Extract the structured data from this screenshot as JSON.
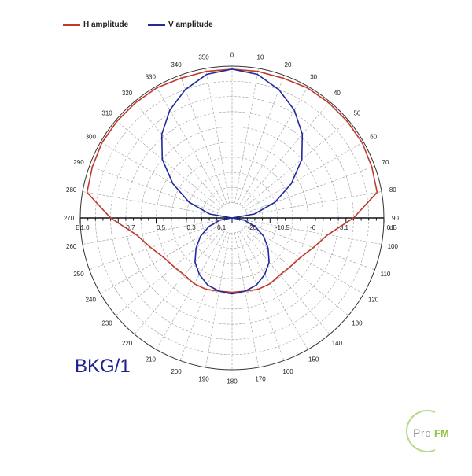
{
  "chart_data": {
    "type": "polar",
    "title": "BKG/1",
    "angle_ticks": [
      0,
      10,
      20,
      30,
      40,
      50,
      60,
      70,
      80,
      90,
      100,
      110,
      120,
      130,
      140,
      150,
      160,
      170,
      180,
      190,
      200,
      210,
      220,
      230,
      240,
      250,
      260,
      270,
      280,
      290,
      300,
      310,
      320,
      330,
      340,
      350
    ],
    "radial_labels_left": {
      "prefix": "Er",
      "ticks": [
        "1.0",
        "0.7",
        "0.5",
        "0.3",
        "0.1"
      ]
    },
    "radial_labels_right": {
      "suffix": "dB",
      "ticks": [
        "-20",
        "-10.5",
        "-6",
        "-3.1",
        "0"
      ]
    },
    "rlim": [
      0,
      1.0
    ],
    "grid": true,
    "legend_position": "top-left",
    "series": [
      {
        "name": "H amplitude",
        "color": "#c0392b",
        "theta": [
          0,
          10,
          20,
          30,
          40,
          50,
          60,
          70,
          80,
          90,
          100,
          110,
          120,
          130,
          140,
          150,
          160,
          170,
          180,
          190,
          200,
          210,
          220,
          230,
          240,
          250,
          260,
          270,
          280,
          290,
          300,
          310,
          320,
          330,
          340,
          350
        ],
        "r": [
          0.98,
          0.98,
          0.98,
          0.99,
          0.99,
          0.99,
          0.99,
          0.98,
          0.97,
          0.8,
          0.64,
          0.57,
          0.52,
          0.5,
          0.49,
          0.5,
          0.5,
          0.49,
          0.49,
          0.49,
          0.5,
          0.5,
          0.49,
          0.5,
          0.52,
          0.57,
          0.64,
          0.8,
          0.97,
          0.98,
          0.99,
          0.99,
          0.99,
          0.99,
          0.98,
          0.98
        ]
      },
      {
        "name": "V amplitude",
        "color": "#1f2a9c",
        "theta": [
          0,
          10,
          20,
          30,
          40,
          50,
          60,
          70,
          80,
          90,
          100,
          110,
          120,
          130,
          140,
          150,
          160,
          170,
          180,
          190,
          200,
          210,
          220,
          230,
          240,
          250,
          260,
          270,
          280,
          290,
          300,
          310,
          320,
          330,
          340,
          350
        ],
        "r": [
          0.98,
          0.96,
          0.9,
          0.82,
          0.72,
          0.6,
          0.45,
          0.3,
          0.15,
          0.0,
          0.08,
          0.16,
          0.24,
          0.31,
          0.38,
          0.43,
          0.47,
          0.49,
          0.5,
          0.49,
          0.47,
          0.43,
          0.38,
          0.31,
          0.24,
          0.16,
          0.08,
          0.0,
          0.15,
          0.3,
          0.45,
          0.6,
          0.72,
          0.82,
          0.9,
          0.96
        ]
      }
    ]
  },
  "legend": {
    "h_label": "H amplitude",
    "v_label": "V amplitude",
    "h_color": "#c0392b",
    "v_color": "#1f2a9c"
  },
  "watermark": {
    "text": "ProFM"
  }
}
